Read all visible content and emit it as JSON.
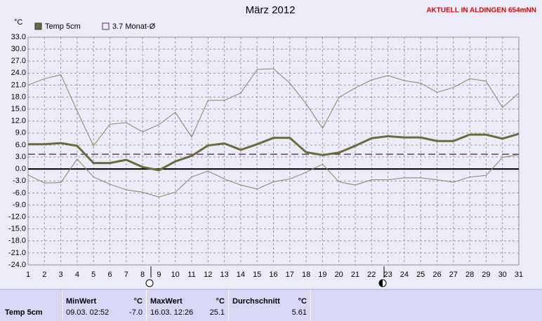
{
  "chart_data": {
    "type": "line",
    "title": "März 2012",
    "annotation": "AKTUELL IN ALDINGEN 654mNN",
    "y_label": "°C",
    "x": [
      1,
      2,
      3,
      4,
      5,
      6,
      7,
      8,
      9,
      10,
      11,
      12,
      13,
      14,
      15,
      16,
      17,
      18,
      19,
      20,
      21,
      22,
      23,
      24,
      25,
      26,
      27,
      28,
      29,
      30,
      31
    ],
    "xlim": [
      1,
      31
    ],
    "xticks": [
      1,
      2,
      3,
      4,
      5,
      6,
      7,
      8,
      9,
      10,
      11,
      12,
      13,
      14,
      15,
      16,
      17,
      18,
      19,
      20,
      21,
      22,
      23,
      24,
      25,
      26,
      27,
      28,
      29,
      30,
      31
    ],
    "ylim": [
      -24,
      33
    ],
    "yticks": [
      {
        "value": 33,
        "label": "33.0"
      },
      {
        "value": 30,
        "label": "30.0"
      },
      {
        "value": 27,
        "label": "27.0"
      },
      {
        "value": 24,
        "label": "24.0"
      },
      {
        "value": 21,
        "label": "21.0"
      },
      {
        "value": 18,
        "label": "18.0"
      },
      {
        "value": 15,
        "label": "15.0"
      },
      {
        "value": 12,
        "label": "12.0"
      },
      {
        "value": 9,
        "label": "9.0"
      },
      {
        "value": 6,
        "label": "6.0"
      },
      {
        "value": 3,
        "label": "3.0"
      },
      {
        "value": 0,
        "label": "0.0"
      },
      {
        "value": -3,
        "label": "-3.0"
      },
      {
        "value": -6,
        "label": "-6.0"
      },
      {
        "value": -9,
        "label": "-9.0"
      },
      {
        "value": -12,
        "label": "-12.0"
      },
      {
        "value": -15,
        "label": "-15.0"
      },
      {
        "value": -18,
        "label": "-18.0"
      },
      {
        "value": -21,
        "label": "-21.0"
      },
      {
        "value": -24,
        "label": "-24.0"
      }
    ],
    "grid": true,
    "series": [
      {
        "name": "Temp 5cm",
        "color": "#6b6b3a",
        "values": [
          6.2,
          6.2,
          6.5,
          5.8,
          1.5,
          1.5,
          2.3,
          0.5,
          -0.3,
          1.9,
          3.3,
          5.9,
          6.4,
          4.8,
          6.2,
          7.8,
          7.8,
          4.2,
          3.5,
          4.1,
          5.8,
          7.7,
          8.2,
          7.9,
          7.9,
          7.0,
          7.0,
          8.6,
          8.6,
          7.6,
          8.8
        ]
      },
      {
        "color": "#85855e",
        "values": [
          21.0,
          22.6,
          23.6,
          14.5,
          5.8,
          11.2,
          11.6,
          9.3,
          11.1,
          14.2,
          8.0,
          17.2,
          17.2,
          19.0,
          24.9,
          25.1,
          21.5,
          16.3,
          10.2,
          17.9,
          20.3,
          22.3,
          23.4,
          22.1,
          21.5,
          19.2,
          20.4,
          22.6,
          22.0,
          15.4,
          19.0
        ]
      },
      {
        "color": "#85855e",
        "values": [
          -1.5,
          -3.5,
          -3.4,
          2.5,
          -2.0,
          -3.8,
          -5.2,
          -5.8,
          -7.0,
          -5.8,
          -2.0,
          -0.5,
          -2.5,
          -4.0,
          -5.0,
          -3.2,
          -2.5,
          -0.8,
          1.2,
          -3.2,
          -4.0,
          -2.7,
          -2.7,
          -2.2,
          -2.2,
          -2.7,
          -3.3,
          -2.0,
          -1.6,
          2.9,
          3.6
        ]
      }
    ],
    "average": {
      "label": "3.7 Monat-Ø",
      "value": 3.7,
      "color": "#5a2a6a"
    }
  },
  "table": {
    "row_label": "Temp 5cm",
    "cells": [
      {
        "title": "MinWert",
        "unit": "°C",
        "time": "09.03.  02:52",
        "value": "-7.0"
      },
      {
        "title": "MaxWert",
        "unit": "°C",
        "time": "16.03.  12:26",
        "value": "25.1"
      },
      {
        "title": "Durchschnitt",
        "unit": "°C",
        "time": "",
        "value": "5.61"
      }
    ]
  }
}
